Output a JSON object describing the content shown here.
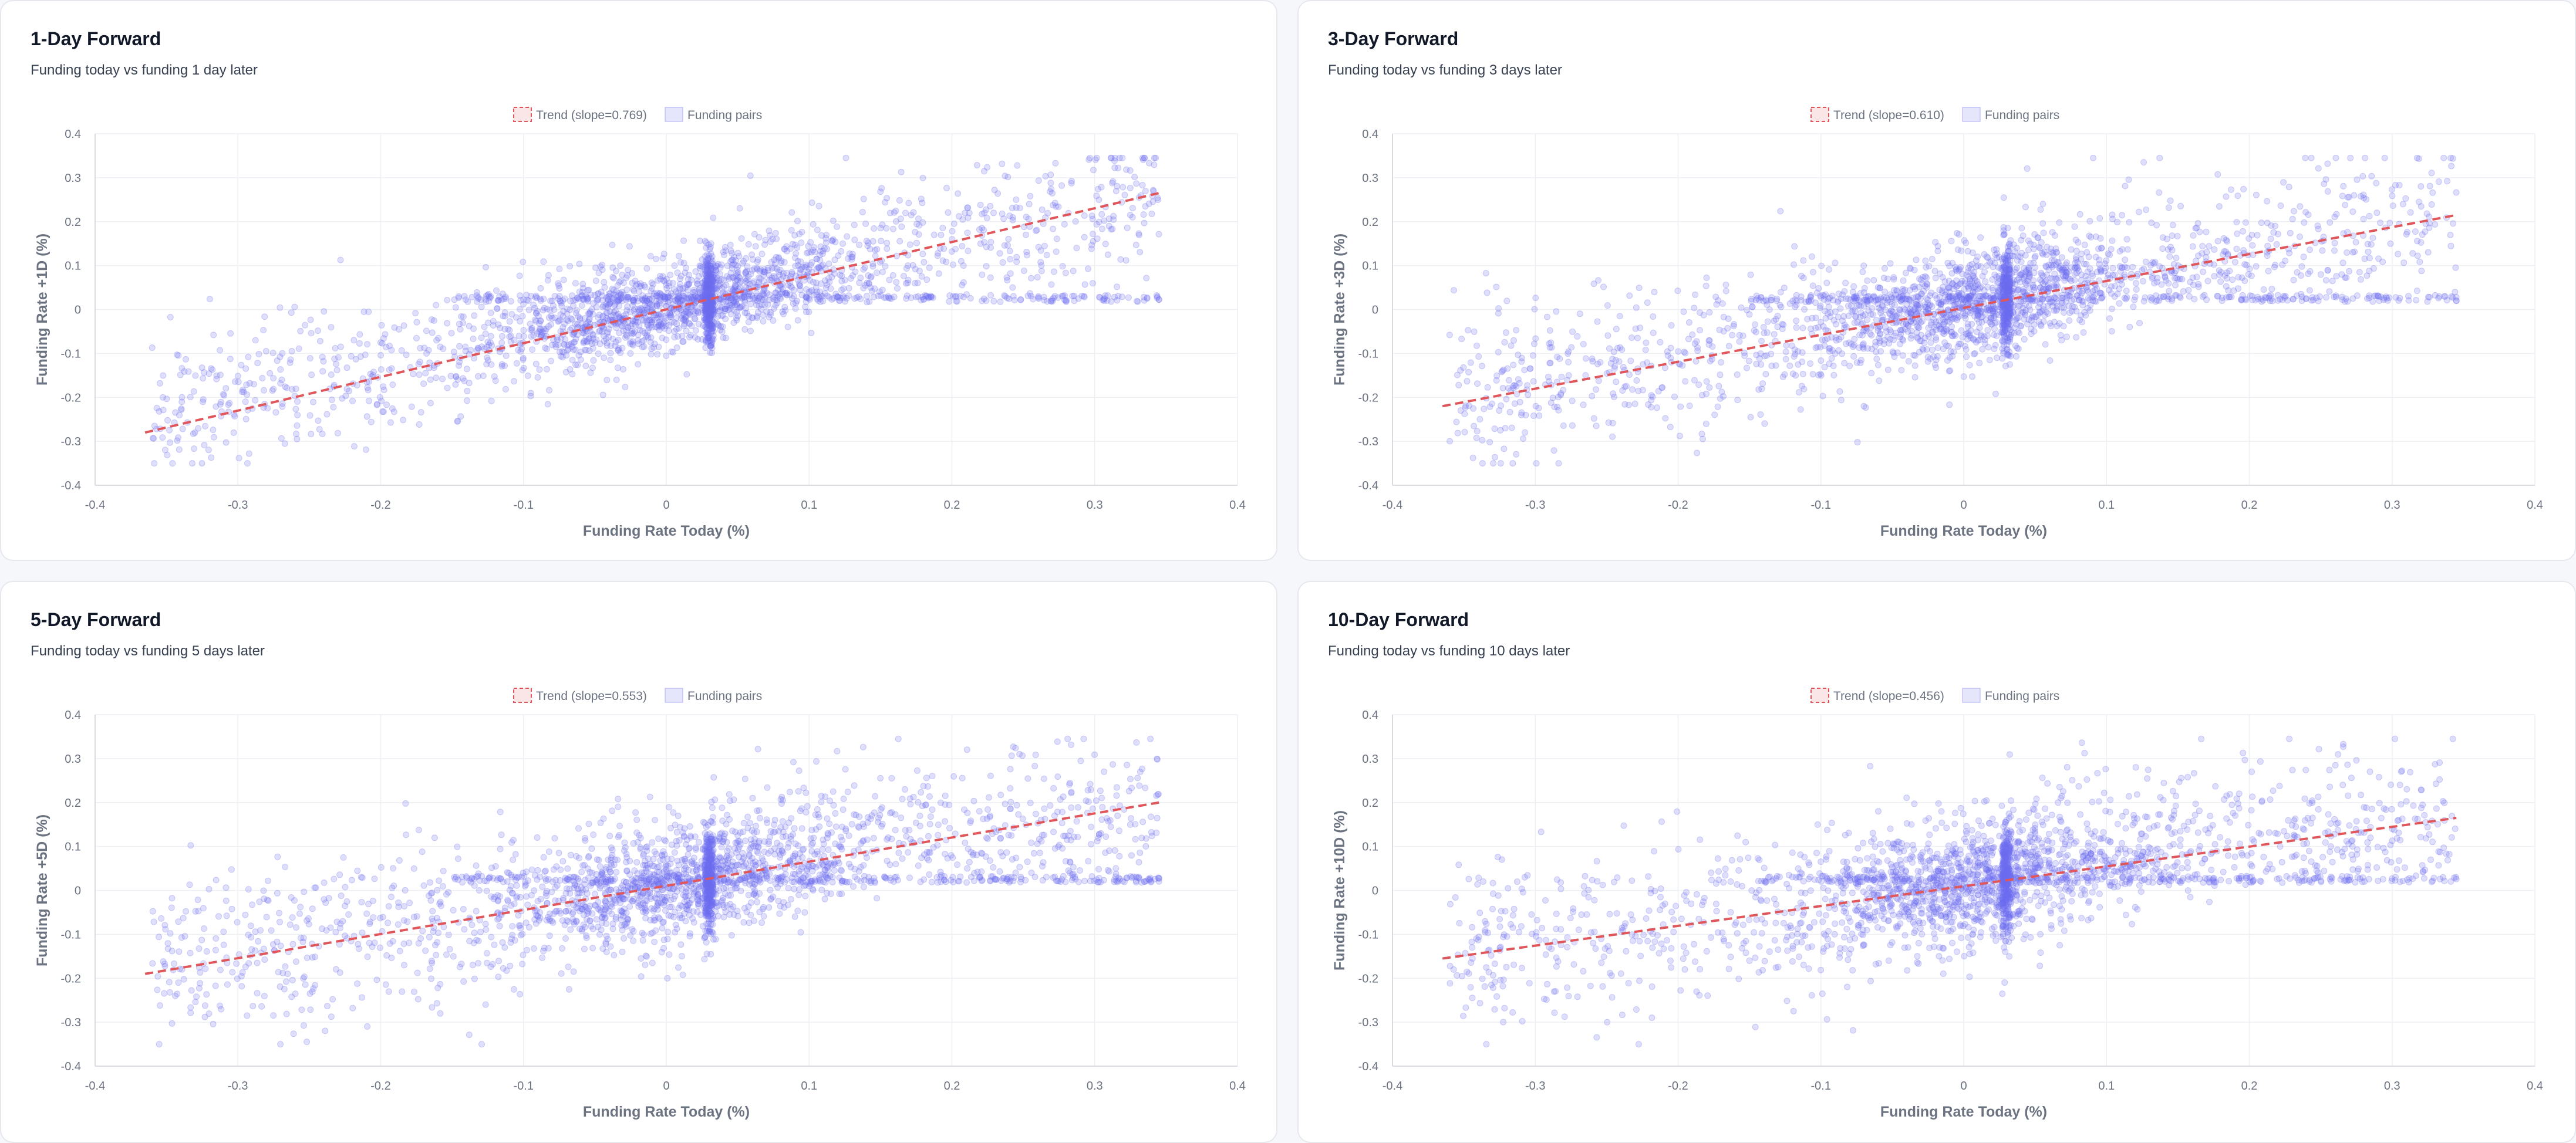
{
  "colors": {
    "point_fill": "rgba(110,110,240,0.22)",
    "point_stroke": "rgba(110,110,240,0.32)",
    "trend": "#e0565b",
    "grid": "#eeeff3",
    "axis": "#d9dbe1"
  },
  "legend": {
    "points_label": "Funding pairs"
  },
  "chart_data": [
    {
      "type": "scatter",
      "title": "1-Day Forward",
      "subtitle": "Funding today vs funding 1 day later",
      "xlabel": "Funding Rate Today (%)",
      "ylabel": "Funding Rate +1D (%)",
      "xlim": [
        -0.4,
        0.4
      ],
      "ylim": [
        -0.4,
        0.4
      ],
      "xticks": [
        "-0.4",
        "-0.3",
        "-0.2",
        "-0.1",
        "0",
        "0.1",
        "0.2",
        "0.3",
        "0.4"
      ],
      "yticks": [
        "0.4",
        "0.3",
        "0.2",
        "0.1",
        "0",
        "-0.1",
        "-0.2",
        "-0.3",
        "-0.4"
      ],
      "trend_label": "Trend (slope=0.769)",
      "slope": 0.769,
      "trend_line": {
        "x": [
          -0.365,
          0.345
        ],
        "y": [
          -0.28,
          0.265
        ]
      },
      "cluster": {
        "x": 0.03,
        "y": 0.025
      },
      "seed": 11
    },
    {
      "type": "scatter",
      "title": "3-Day Forward",
      "subtitle": "Funding today vs funding 3 days later",
      "xlabel": "Funding Rate Today (%)",
      "ylabel": "Funding Rate +3D (%)",
      "xlim": [
        -0.4,
        0.4
      ],
      "ylim": [
        -0.4,
        0.4
      ],
      "xticks": [
        "-0.4",
        "-0.3",
        "-0.2",
        "-0.1",
        "0",
        "0.1",
        "0.2",
        "0.3",
        "0.4"
      ],
      "yticks": [
        "0.4",
        "0.3",
        "0.2",
        "0.1",
        "0",
        "-0.1",
        "-0.2",
        "-0.3",
        "-0.4"
      ],
      "trend_label": "Trend (slope=0.610)",
      "slope": 0.61,
      "trend_line": {
        "x": [
          -0.365,
          0.345
        ],
        "y": [
          -0.22,
          0.215
        ]
      },
      "cluster": {
        "x": 0.03,
        "y": 0.025
      },
      "seed": 23
    },
    {
      "type": "scatter",
      "title": "5-Day Forward",
      "subtitle": "Funding today vs funding 5 days later",
      "xlabel": "Funding Rate Today (%)",
      "ylabel": "Funding Rate +5D (%)",
      "xlim": [
        -0.4,
        0.4
      ],
      "ylim": [
        -0.4,
        0.4
      ],
      "xticks": [
        "-0.4",
        "-0.3",
        "-0.2",
        "-0.1",
        "0",
        "0.1",
        "0.2",
        "0.3",
        "0.4"
      ],
      "yticks": [
        "0.4",
        "0.3",
        "0.2",
        "0.1",
        "0",
        "-0.1",
        "-0.2",
        "-0.3",
        "-0.4"
      ],
      "trend_label": "Trend (slope=0.553)",
      "slope": 0.553,
      "trend_line": {
        "x": [
          -0.365,
          0.345
        ],
        "y": [
          -0.19,
          0.2
        ]
      },
      "cluster": {
        "x": 0.03,
        "y": 0.025
      },
      "seed": 37
    },
    {
      "type": "scatter",
      "title": "10-Day Forward",
      "subtitle": "Funding today vs funding 10 days later",
      "xlabel": "Funding Rate Today (%)",
      "ylabel": "Funding Rate +10D (%)",
      "xlim": [
        -0.4,
        0.4
      ],
      "ylim": [
        -0.4,
        0.4
      ],
      "xticks": [
        "-0.4",
        "-0.3",
        "-0.2",
        "-0.1",
        "0",
        "0.1",
        "0.2",
        "0.3",
        "0.4"
      ],
      "yticks": [
        "0.4",
        "0.3",
        "0.2",
        "0.1",
        "0",
        "-0.1",
        "-0.2",
        "-0.3",
        "-0.4"
      ],
      "trend_label": "Trend (slope=0.456)",
      "slope": 0.456,
      "trend_line": {
        "x": [
          -0.365,
          0.345
        ],
        "y": [
          -0.155,
          0.165
        ]
      },
      "cluster": {
        "x": 0.03,
        "y": 0.025
      },
      "seed": 53
    }
  ]
}
